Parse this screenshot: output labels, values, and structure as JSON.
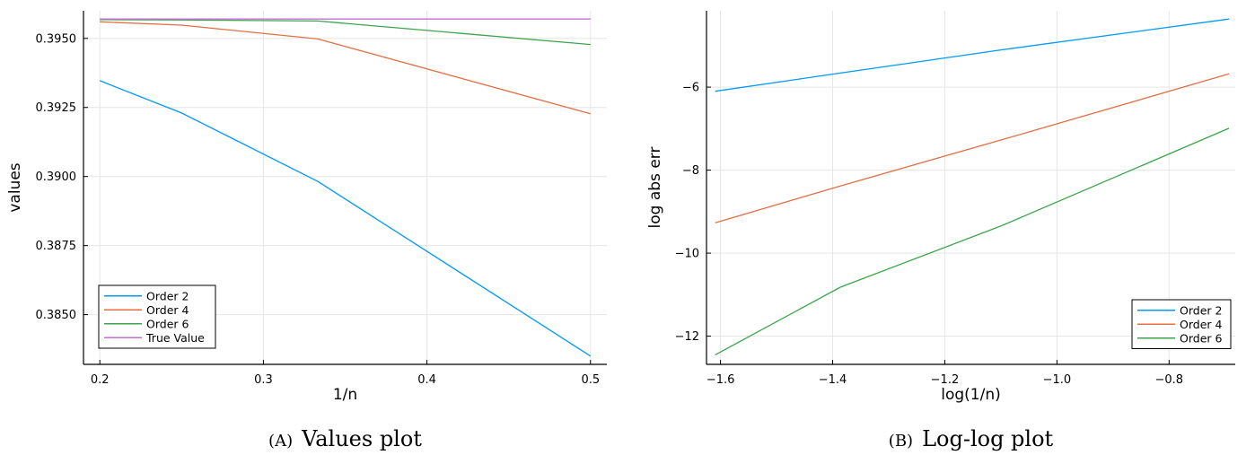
{
  "chart_data": [
    {
      "type": "line",
      "xlabel": "1/n",
      "ylabel": "values",
      "xlim": [
        0.19,
        0.51
      ],
      "ylim": [
        0.3832,
        0.396
      ],
      "xticks": [
        0.2,
        0.3,
        0.4,
        0.5
      ],
      "xtick_labels": [
        "0.2",
        "0.3",
        "0.4",
        "0.5"
      ],
      "yticks": [
        0.385,
        0.3875,
        0.39,
        0.3925,
        0.395
      ],
      "ytick_labels": [
        "0.3850",
        "0.3875",
        "0.3900",
        "0.3925",
        "0.3950"
      ],
      "grid": true,
      "legend_position": "bottom-left",
      "x": [
        0.2,
        0.25,
        0.3333,
        0.5
      ],
      "series": [
        {
          "name": "Order 2",
          "color": "#009af9",
          "values": [
            0.39347,
            0.3923,
            0.38982,
            0.3835
          ]
        },
        {
          "name": "Order 4",
          "color": "#e26f46",
          "values": [
            0.3956,
            0.39548,
            0.39498,
            0.39227
          ]
        },
        {
          "name": "Order 6",
          "color": "#3da44d",
          "values": [
            0.39568,
            0.39567,
            0.39563,
            0.39478
          ]
        },
        {
          "name": "True Value",
          "color": "#c271d2",
          "values": [
            0.3957,
            0.3957,
            0.3957,
            0.3957
          ]
        }
      ],
      "caption_tag": "(A)",
      "caption_text": "Values plot"
    },
    {
      "type": "line",
      "xlabel": "log(1/n)",
      "ylabel": "log abs err",
      "xlim": [
        -1.625,
        -0.682
      ],
      "ylim": [
        -12.68,
        -4.16
      ],
      "xticks": [
        -1.6,
        -1.4,
        -1.2,
        -1.0,
        -0.8
      ],
      "xtick_labels": [
        "−1.6",
        "−1.4",
        "−1.2",
        "−1.0",
        "−0.8"
      ],
      "yticks": [
        -12,
        -10,
        -8,
        -6
      ],
      "ytick_labels": [
        "−12",
        "−10",
        "−8",
        "−6"
      ],
      "grid": true,
      "legend_position": "bottom-right",
      "x": [
        -1.6094,
        -1.3863,
        -1.0986,
        -0.6931
      ],
      "series": [
        {
          "name": "Order 2",
          "color": "#009af9",
          "values": [
            -6.1,
            -5.66,
            -5.1,
            -4.36
          ]
        },
        {
          "name": "Order 4",
          "color": "#e26f46",
          "values": [
            -9.27,
            -8.38,
            -7.27,
            -5.68
          ]
        },
        {
          "name": "Order 6",
          "color": "#3da44d",
          "values": [
            -12.45,
            -10.82,
            -9.34,
            -6.99
          ]
        }
      ],
      "caption_tag": "(B)",
      "caption_text": "Log-log plot"
    }
  ]
}
